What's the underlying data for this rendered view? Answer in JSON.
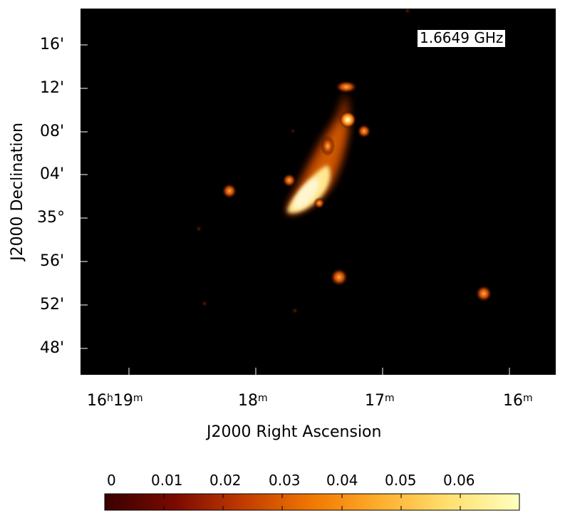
{
  "image": {
    "frequency_label": "1.6649 GHz",
    "x_axis_title": "J2000 Right Ascension",
    "y_axis_title": "J2000 Declination",
    "ra_ticks": [
      {
        "h": "16",
        "h_unit": "h",
        "m": "19",
        "m_unit": "m"
      },
      {
        "h": "",
        "h_unit": "",
        "m": "18",
        "m_unit": "m"
      },
      {
        "h": "",
        "h_unit": "",
        "m": "17",
        "m_unit": "m"
      },
      {
        "h": "",
        "h_unit": "",
        "m": "16",
        "m_unit": "m"
      }
    ],
    "dec_ticks": [
      "16'",
      "12'",
      "08'",
      "04'",
      "35°",
      "56'",
      "52'",
      "48'"
    ],
    "colorbar": {
      "labels": [
        "0",
        "0.01",
        "0.02",
        "0.03",
        "0.04",
        "0.05",
        "0.06"
      ],
      "min": 0,
      "max": 0.07
    },
    "colormap": [
      "#3a0000",
      "#7a0a00",
      "#c03a00",
      "#f07800",
      "#ffb030",
      "#ffe070",
      "#ffffc0"
    ]
  }
}
